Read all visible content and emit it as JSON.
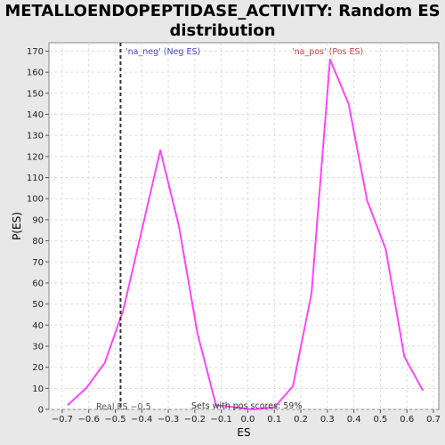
{
  "chart_data": {
    "type": "line",
    "title_line1": "METALLOENDOPEPTIDASE_ACTIVITY: Random ES",
    "title_line2": "distribution",
    "xlabel": "ES",
    "ylabel": "P(ES)",
    "xlim": [
      -0.75,
      0.72
    ],
    "ylim": [
      0,
      174
    ],
    "xticks": [
      -0.7,
      -0.6,
      -0.5,
      -0.4,
      -0.3,
      -0.2,
      -0.1,
      0.0,
      0.1,
      0.2,
      0.3,
      0.4,
      0.5,
      0.6,
      0.7
    ],
    "xtick_labels": [
      "−0.7",
      "−0.6",
      "−0.5",
      "−0.4",
      "−0.3",
      "−0.2",
      "−0.1",
      "0.0",
      "0.1",
      "0.2",
      "0.3",
      "0.4",
      "0.5",
      "0.6",
      "0.7"
    ],
    "yticks": [
      0,
      10,
      20,
      30,
      40,
      50,
      60,
      70,
      80,
      90,
      100,
      110,
      120,
      130,
      140,
      150,
      160,
      170
    ],
    "grid": true,
    "series": [
      {
        "color": "#ff44ff",
        "x": [
          -0.68,
          -0.61,
          -0.54,
          -0.47,
          -0.4,
          -0.33,
          -0.26,
          -0.19,
          -0.12,
          -0.05,
          0.02,
          0.1,
          0.17,
          0.24,
          0.31,
          0.38,
          0.45,
          0.52,
          0.59,
          0.66
        ],
        "y": [
          2,
          10,
          22,
          47,
          85,
          123,
          87,
          36,
          2,
          1,
          0,
          1,
          11,
          55,
          166,
          145,
          99,
          76,
          25,
          9
        ]
      }
    ],
    "vline": {
      "x": -0.48,
      "style": "dashed",
      "color": "#333333"
    },
    "annotations": {
      "neg": {
        "text": "'na_neg' (Neg ES)",
        "color": "#4444cc"
      },
      "pos": {
        "text": "'na_pos' (Pos ES)",
        "color": "#cc4444"
      },
      "real_es": {
        "text": "Real ES −0.5",
        "color": "#555555"
      },
      "sets_pos": {
        "text": "Sets with pos scores: 59%",
        "color": "#333333"
      }
    }
  }
}
